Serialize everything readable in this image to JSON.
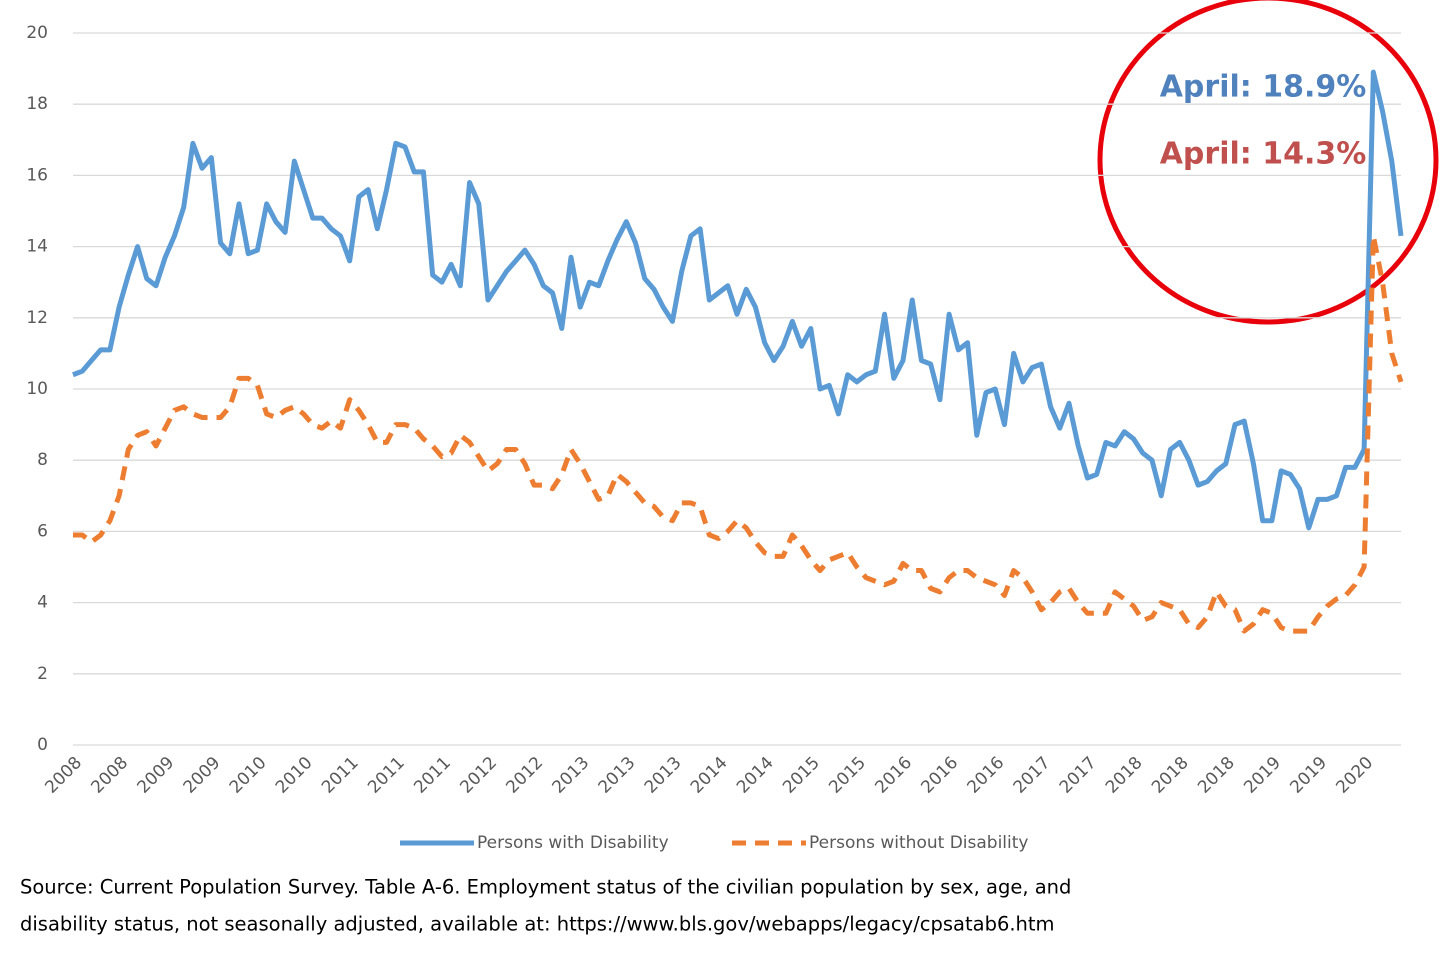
{
  "chart_data": {
    "type": "line",
    "categories": [
      "2008",
      null,
      null,
      null,
      null,
      "2008",
      null,
      null,
      null,
      null,
      "2009",
      null,
      null,
      null,
      null,
      "2009",
      null,
      null,
      null,
      null,
      "2010",
      null,
      null,
      null,
      null,
      "2010",
      null,
      null,
      null,
      null,
      "2011",
      null,
      null,
      null,
      null,
      "2011",
      null,
      null,
      null,
      null,
      "2011",
      null,
      null,
      null,
      null,
      "2012",
      null,
      null,
      null,
      null,
      "2012",
      null,
      null,
      null,
      null,
      "2013",
      null,
      null,
      null,
      null,
      "2013",
      null,
      null,
      null,
      null,
      "2013",
      null,
      null,
      null,
      null,
      "2014",
      null,
      null,
      null,
      null,
      "2014",
      null,
      null,
      null,
      null,
      "2015",
      null,
      null,
      null,
      null,
      "2015",
      null,
      null,
      null,
      null,
      "2016",
      null,
      null,
      null,
      null,
      "2016",
      null,
      null,
      null,
      null,
      "2016",
      null,
      null,
      null,
      null,
      "2017",
      null,
      null,
      null,
      null,
      "2017",
      null,
      null,
      null,
      null,
      "2018",
      null,
      null,
      null,
      null,
      "2018",
      null,
      null,
      null,
      null,
      "2018",
      null,
      null,
      null,
      null,
      "2019",
      null,
      null,
      null,
      null,
      "2019",
      null,
      null,
      null,
      null,
      "2020",
      null,
      null,
      null,
      null
    ],
    "series": [
      {
        "name": "Persons with Disability",
        "color": "#5b9bd5",
        "dash": false,
        "values": [
          10.4,
          10.5,
          10.8,
          11.1,
          11.1,
          12.3,
          13.2,
          14.0,
          13.1,
          12.9,
          13.7,
          14.3,
          15.1,
          16.9,
          16.2,
          16.5,
          14.1,
          13.8,
          15.2,
          13.8,
          13.9,
          15.2,
          14.7,
          14.4,
          16.4,
          15.6,
          14.8,
          14.8,
          14.5,
          14.3,
          13.6,
          15.4,
          15.6,
          14.5,
          15.6,
          16.9,
          16.8,
          16.1,
          16.1,
          13.2,
          13.0,
          13.5,
          12.9,
          15.8,
          15.2,
          12.5,
          12.9,
          13.3,
          13.6,
          13.9,
          13.5,
          12.9,
          12.7,
          11.7,
          13.7,
          12.3,
          13.0,
          12.9,
          13.6,
          14.2,
          14.7,
          14.1,
          13.1,
          12.8,
          12.3,
          11.9,
          13.3,
          14.3,
          14.5,
          12.5,
          12.7,
          12.9,
          12.1,
          12.8,
          12.3,
          11.3,
          10.8,
          11.2,
          11.9,
          11.2,
          11.7,
          10.0,
          10.1,
          9.3,
          10.4,
          10.2,
          10.4,
          10.5,
          12.1,
          10.3,
          10.8,
          12.5,
          10.8,
          10.7,
          9.7,
          12.1,
          11.1,
          11.3,
          8.7,
          9.9,
          10.0,
          9.0,
          11.0,
          10.2,
          10.6,
          10.7,
          9.5,
          8.9,
          9.6,
          8.4,
          7.5,
          7.6,
          8.5,
          8.4,
          8.8,
          8.6,
          8.2,
          8.0,
          7.0,
          8.3,
          8.5,
          8.0,
          7.3,
          7.4,
          7.7,
          7.9,
          9.0,
          9.1,
          7.9,
          6.3,
          6.3,
          7.7,
          7.6,
          7.2,
          6.1,
          6.9,
          6.9,
          7.0,
          7.8,
          7.8,
          8.3,
          18.9,
          17.8,
          16.4,
          14.3
        ]
      },
      {
        "name": "Persons without Disability",
        "color": "#ed7d31",
        "dash": true,
        "values": [
          5.9,
          5.9,
          5.7,
          5.9,
          6.3,
          7.0,
          8.3,
          8.7,
          8.8,
          8.4,
          8.9,
          9.4,
          9.5,
          9.3,
          9.2,
          9.2,
          9.2,
          9.5,
          10.3,
          10.3,
          10.1,
          9.3,
          9.2,
          9.4,
          9.5,
          9.3,
          9.0,
          8.9,
          9.1,
          8.9,
          9.7,
          9.4,
          9.0,
          8.5,
          8.5,
          9.0,
          9.0,
          8.9,
          8.6,
          8.4,
          8.1,
          8.2,
          8.7,
          8.5,
          8.1,
          7.7,
          7.9,
          8.3,
          8.3,
          7.9,
          7.3,
          7.3,
          7.2,
          7.6,
          8.3,
          7.9,
          7.4,
          6.9,
          7.0,
          7.6,
          7.4,
          7.1,
          6.8,
          6.7,
          6.4,
          6.3,
          6.8,
          6.8,
          6.7,
          5.9,
          5.8,
          6.0,
          6.3,
          6.1,
          5.7,
          5.4,
          5.3,
          5.3,
          5.9,
          5.6,
          5.2,
          4.9,
          5.2,
          5.3,
          5.4,
          5.0,
          4.7,
          4.6,
          4.5,
          4.6,
          5.1,
          4.9,
          4.9,
          4.4,
          4.3,
          4.7,
          4.9,
          4.9,
          4.7,
          4.6,
          4.5,
          4.2,
          4.9,
          4.7,
          4.3,
          3.8,
          4.0,
          4.3,
          4.4,
          4.0,
          3.7,
          3.7,
          3.7,
          4.3,
          4.1,
          3.9,
          3.5,
          3.6,
          4.0,
          3.9,
          3.8,
          3.4,
          3.3,
          3.6,
          4.3,
          3.9,
          3.8,
          3.2,
          3.4,
          3.8,
          3.7,
          3.3,
          3.2,
          3.2,
          3.2,
          3.6,
          3.9,
          4.1,
          4.2,
          4.5,
          5.0,
          14.3,
          13.0,
          11.0,
          10.2
        ]
      }
    ],
    "ylim": [
      0,
      20
    ],
    "yticks": [
      0,
      2,
      4,
      6,
      8,
      10,
      12,
      14,
      16,
      18,
      20
    ],
    "grid": true,
    "legend": "bottom",
    "annotations": [
      {
        "text": "April: 18.9%",
        "color": "#4f81bd"
      },
      {
        "text": "April: 14.3%",
        "color": "#c0504d"
      }
    ],
    "source": [
      "Source: Current Population Survey. Table A-6. Employment status of the civilian population by sex, age, and",
      "disability status, not seasonally adjusted, available at: https://www.bls.gov/webapps/legacy/cpsatab6.htm"
    ]
  }
}
